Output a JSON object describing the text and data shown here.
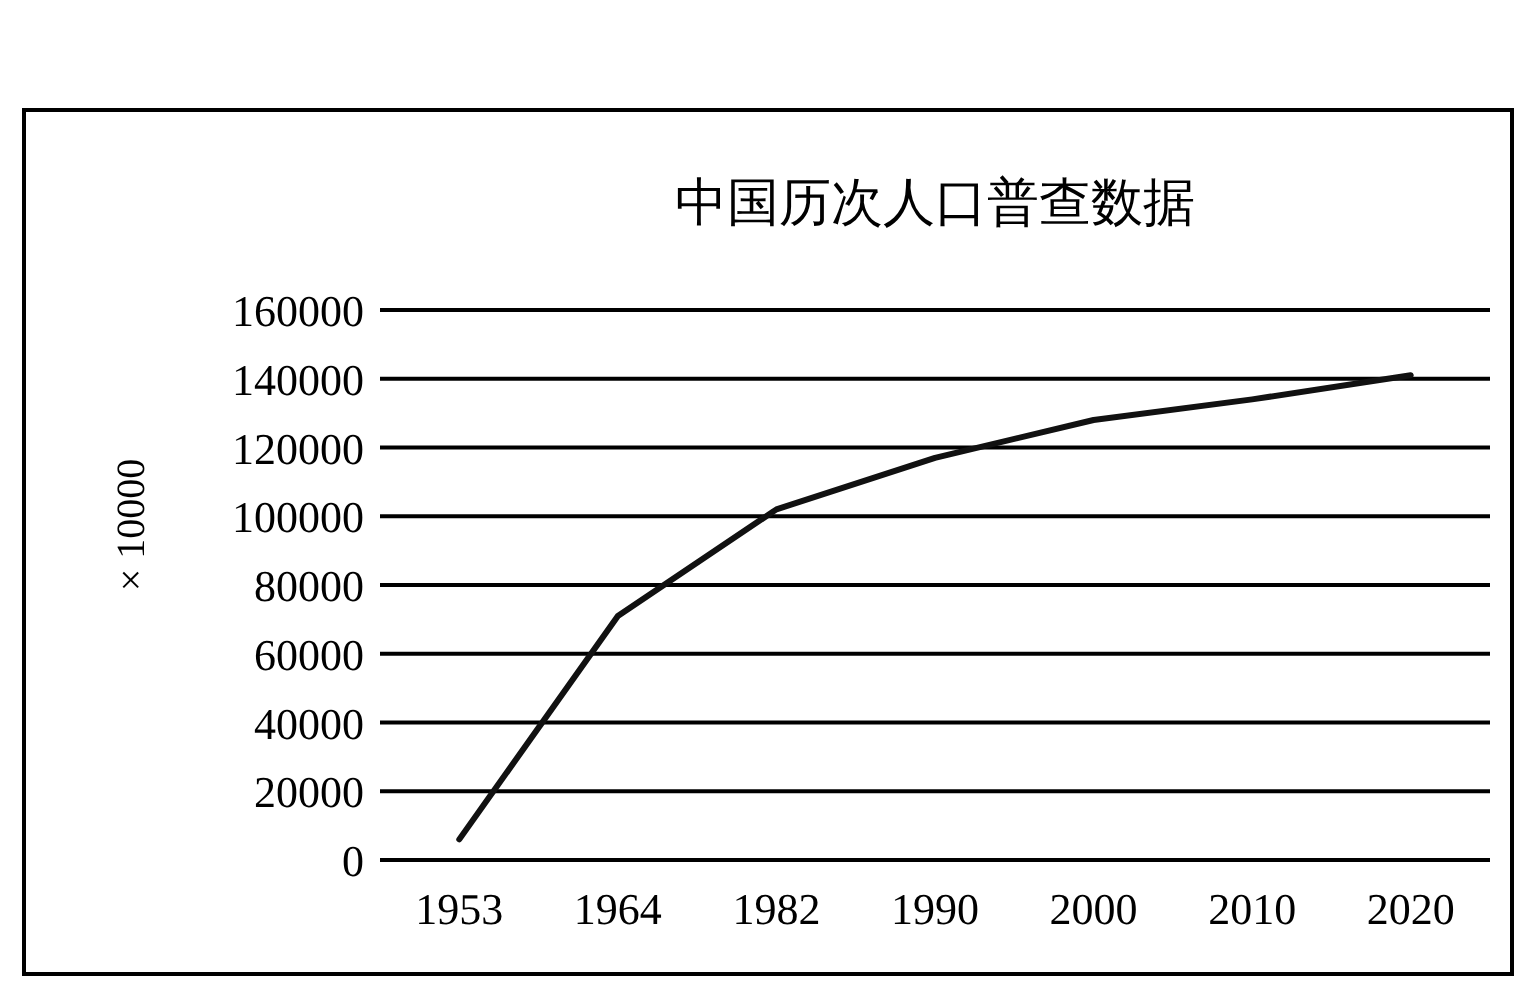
{
  "chart_data": {
    "type": "line",
    "title": "中国历次人口普查数据",
    "ylabel": "× 10000",
    "categories": [
      "1953",
      "1964",
      "1982",
      "1990",
      "2000",
      "2010",
      "2020"
    ],
    "series": [
      {
        "color": "#111111",
        "values": [
          6000,
          71000,
          102000,
          117000,
          128000,
          134000,
          141000
        ]
      }
    ],
    "ylim": [
      0,
      160000
    ],
    "yticks": [
      0,
      20000,
      40000,
      60000,
      80000,
      100000,
      120000,
      140000,
      160000
    ],
    "grid": "y",
    "marker": "none",
    "line_style": "solid"
  }
}
